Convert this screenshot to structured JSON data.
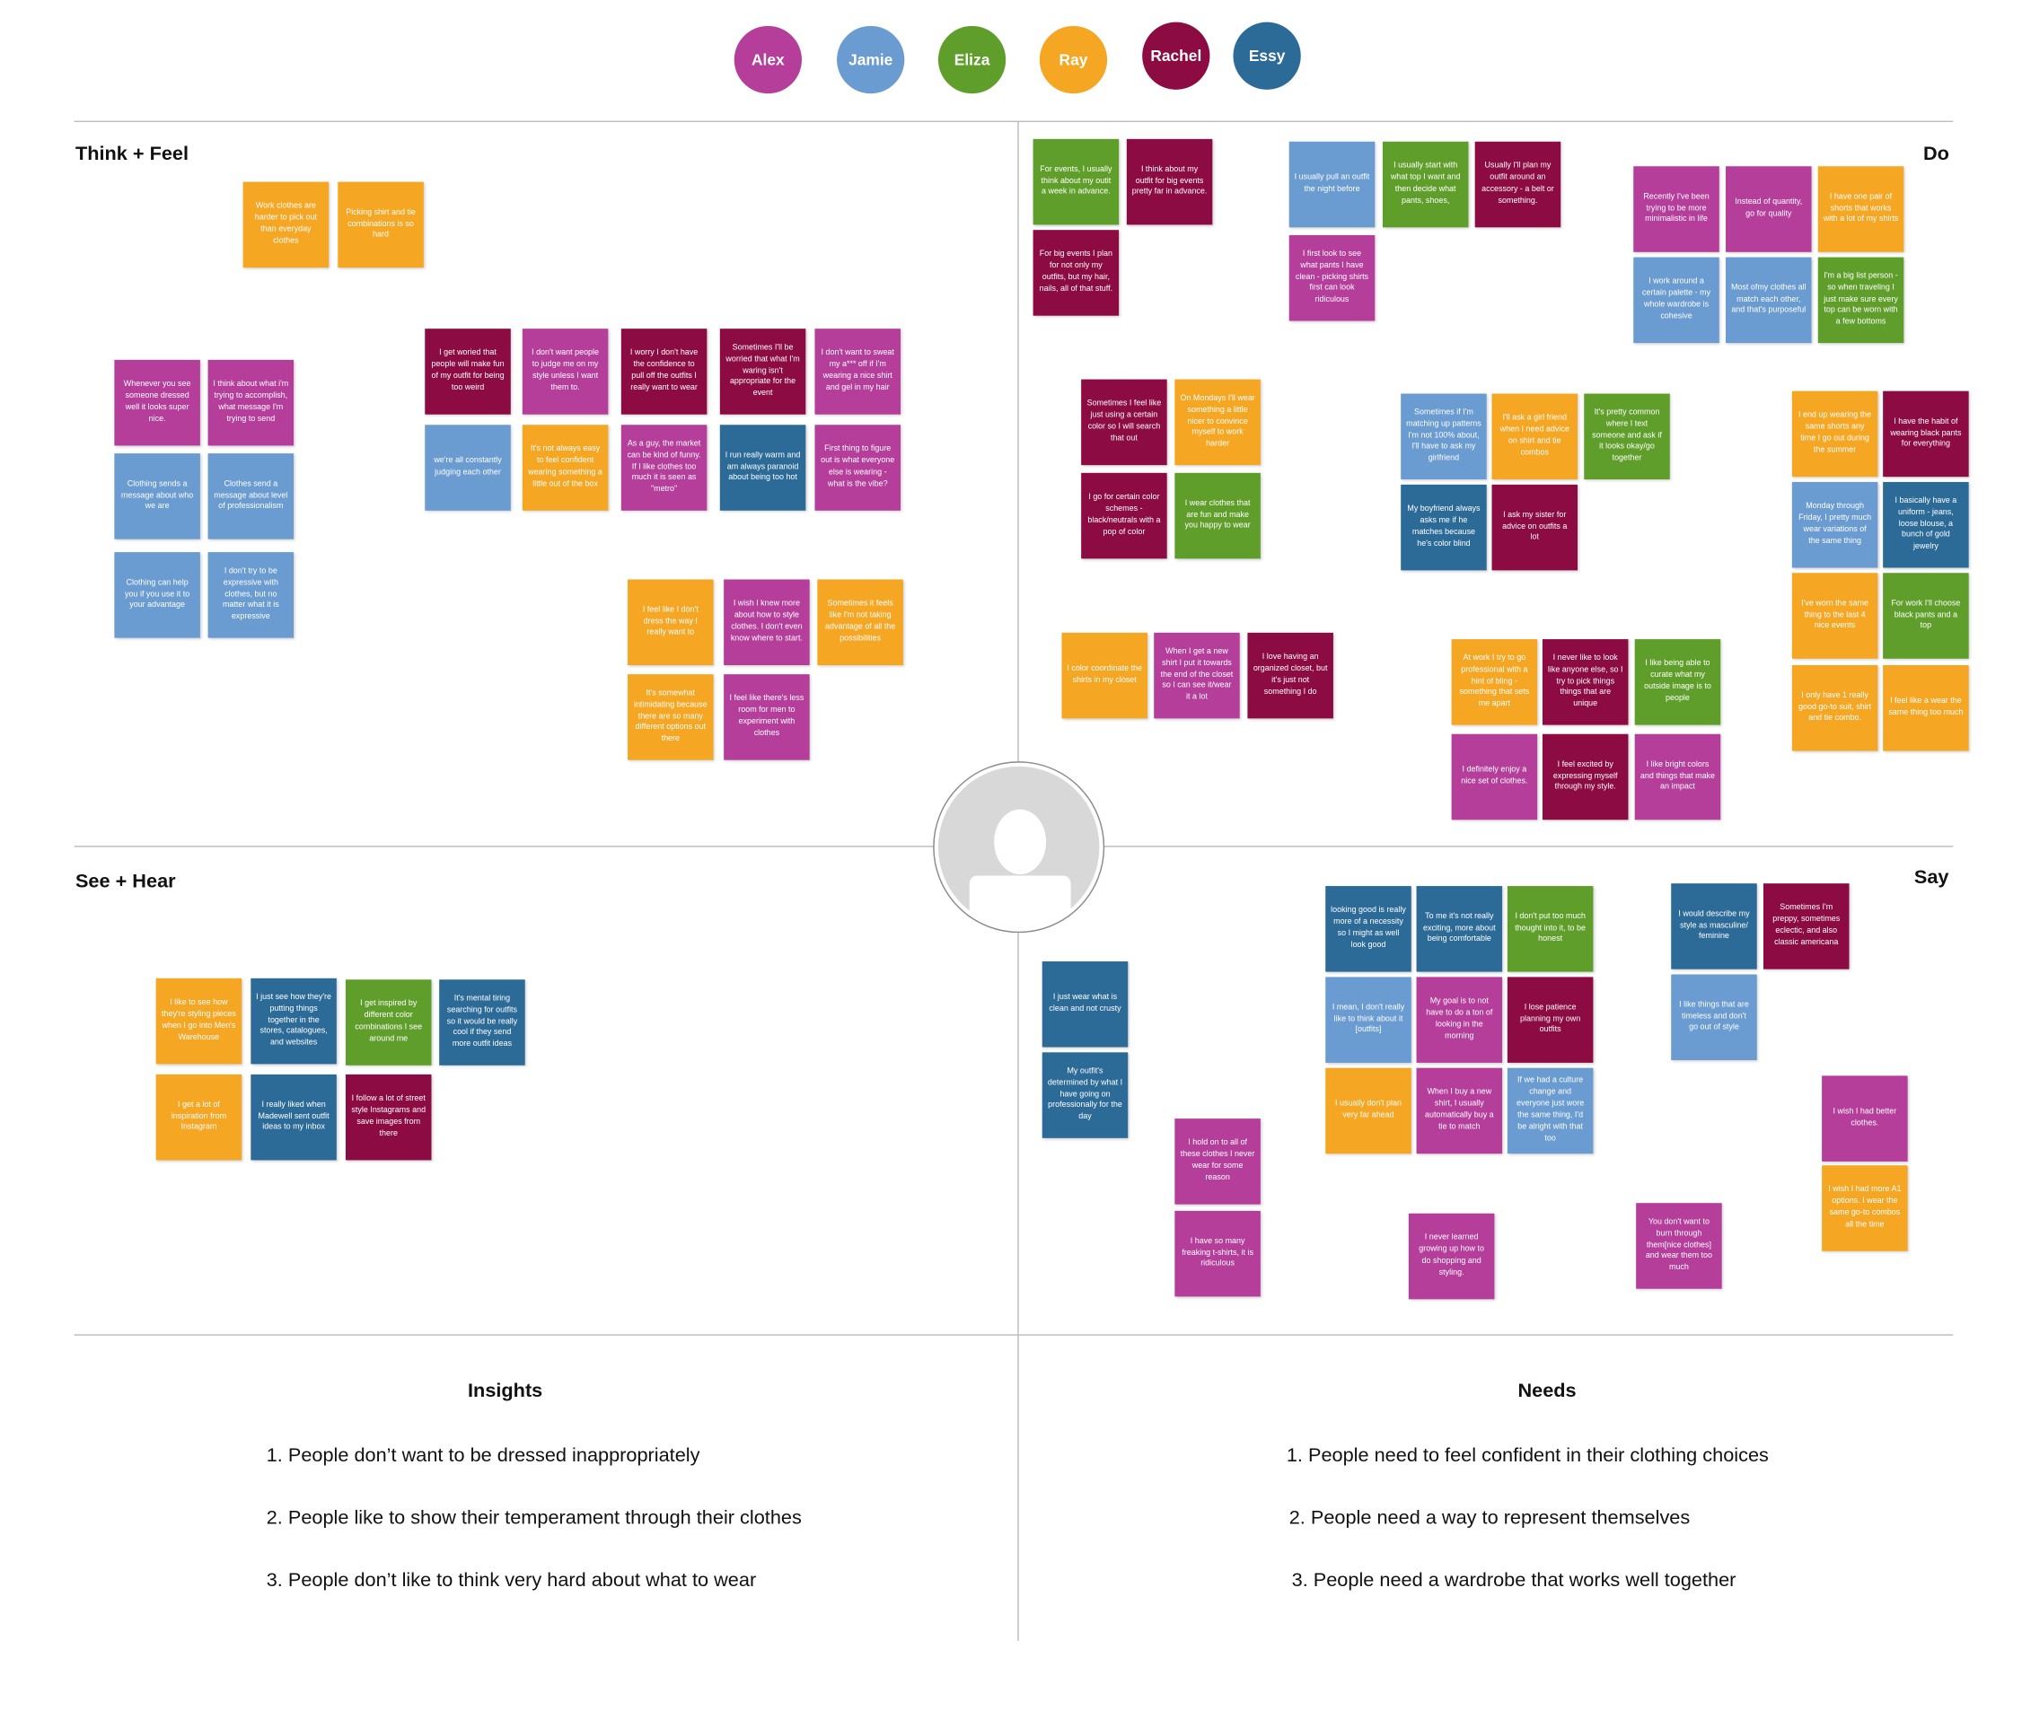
{
  "team": [
    {
      "name": "Alex",
      "color": "#b53e9b"
    },
    {
      "name": "Jamie",
      "color": "#6a9bd1"
    },
    {
      "name": "Eliza",
      "color": "#5f9e2a"
    },
    {
      "name": "Ray",
      "color": "#f5a623"
    },
    {
      "name": "Rachel",
      "color": "#8b0b42"
    },
    {
      "name": "Essy",
      "color": "#2c6a98"
    }
  ],
  "quadrants": {
    "think_feel": "Think + Feel",
    "do": "Do",
    "see_hear": "See + Hear",
    "say": "Say"
  },
  "persona_icon": "user-silhouette-icon",
  "notes": {
    "think_feel": [
      {
        "author": "Ray",
        "text": "Work clothes are harder to pick out than everyday clothes"
      },
      {
        "author": "Ray",
        "text": "Picking shirt and tie combinations is so hard"
      },
      {
        "author": "Alex",
        "text": "Whenever you see someone dressed well it looks super nice."
      },
      {
        "author": "Alex",
        "text": "I think about what i'm trying to accomplish, what message I'm trying to send"
      },
      {
        "author": "Jamie",
        "text": "Clothing sends a message about who we are"
      },
      {
        "author": "Jamie",
        "text": "Clothes send a message about level of professionalism"
      },
      {
        "author": "Jamie",
        "text": "Clothing can help you if you use it to your advantage"
      },
      {
        "author": "Jamie",
        "text": "I don't try to be expressive with clothes, but no matter what it is expressive"
      },
      {
        "author": "Rachel",
        "text": "I get woried that people will make fun of my outfit for being too weird"
      },
      {
        "author": "Alex",
        "text": "I don't want people to judge me on my style unless I want them to."
      },
      {
        "author": "Rachel",
        "text": "I worry I don't have the confidence to pull off the outfits I really want to wear"
      },
      {
        "author": "Rachel",
        "text": "Sometimes I'll be worried that what I'm waring isn't appropriate for the event"
      },
      {
        "author": "Alex",
        "text": "I don't want to sweat my a*** off if I'm wearing a nice shirt and gel in my hair"
      },
      {
        "author": "Jamie",
        "text": "we're all constantly judging each other"
      },
      {
        "author": "Ray",
        "text": "It's not always easy to feel confident wearing something a little out of the box"
      },
      {
        "author": "Alex",
        "text": "As a guy, the market can be kind of funny. If I like clothes too much it is seen as \"metro\""
      },
      {
        "author": "Essy",
        "text": "I run really warm and am always paranoid about being too hot"
      },
      {
        "author": "Alex",
        "text": "First thing to figure out is what everyone else is wearing - what is the vibe?"
      },
      {
        "author": "Ray",
        "text": "I feel like I don't dress the way I really want to"
      },
      {
        "author": "Alex",
        "text": "I wish I knew more about how to style clothes. I don't even know where to start."
      },
      {
        "author": "Ray",
        "text": "Sometimes it feels like I'm not taking advantage of all the possibilities"
      },
      {
        "author": "Ray",
        "text": "It's somewhat intimidating because there are so many different options out there"
      },
      {
        "author": "Alex",
        "text": "I feel like there's less room for men to experiment with clothes"
      }
    ],
    "do": [
      {
        "author": "Eliza",
        "text": "For events, I usually think about my outit a week in advance."
      },
      {
        "author": "Rachel",
        "text": "I think about my outfit for big events pretty far in advance."
      },
      {
        "author": "Rachel",
        "text": "For big events I plan for not only my outfits, but my hair, nails, all of that stuff."
      },
      {
        "author": "Jamie",
        "text": "I usually pull an outfit the night before"
      },
      {
        "author": "Eliza",
        "text": "I usually start with what top I want and then decide what pants, shoes,"
      },
      {
        "author": "Rachel",
        "text": "Usually I'll plan my outfit around an accessory - a belt or something."
      },
      {
        "author": "Alex",
        "text": "I first look to see what pants I have clean - picking shirts first can look ridiculous"
      },
      {
        "author": "Alex",
        "text": "Recently I've been trying to be more minimalistic in life"
      },
      {
        "author": "Alex",
        "text": "Instead of quantity, go for quality"
      },
      {
        "author": "Ray",
        "text": "I have one pair of shorts that works with a lot of my shirts"
      },
      {
        "author": "Jamie",
        "text": "I work around a certain palette - my whole wardrobe is cohesive"
      },
      {
        "author": "Jamie",
        "text": "Most ofmy clothes all match each other, and that's purposeful"
      },
      {
        "author": "Eliza",
        "text": "I'm a big list person - so when traveling I just make sure every top can be worn with a few bottoms"
      },
      {
        "author": "Rachel",
        "text": "Sometimes I feel like just using a certain color so I will search that out"
      },
      {
        "author": "Ray",
        "text": "On Mondays I'll wear something a little nicer to convince myself to work harder"
      },
      {
        "author": "Rachel",
        "text": "I go for certain color schemes - black/neutrals with a pop of color"
      },
      {
        "author": "Eliza",
        "text": "I wear clothes that are fun and make you happy to wear"
      },
      {
        "author": "Jamie",
        "text": "Sometimes if I'm matching up patterns I'm not 100% about, I'll have to ask my girlfriend"
      },
      {
        "author": "Ray",
        "text": "I'll ask a girl friend when I need advice on shirt and tie combos"
      },
      {
        "author": "Eliza",
        "text": "It's pretty common where I text someone and ask if it looks okay/go together"
      },
      {
        "author": "Essy",
        "text": "My boyfriend always asks me if he matches because he's color blind"
      },
      {
        "author": "Rachel",
        "text": "I ask my sister for advice on outfits a lot"
      },
      {
        "author": "Ray",
        "text": "I end up wearing the same shorts any time I go out during the summer"
      },
      {
        "author": "Rachel",
        "text": "I have the habit of wearing black pants for everything"
      },
      {
        "author": "Jamie",
        "text": "Monday through Friday, I pretty much wear variations of the same thing"
      },
      {
        "author": "Essy",
        "text": "I basically have a uniform - jeans, loose blouse, a bunch of gold jewelry"
      },
      {
        "author": "Ray",
        "text": "I've worn the same thing to the last 4 nice events"
      },
      {
        "author": "Eliza",
        "text": "For work I'll choose black pants and a top"
      },
      {
        "author": "Ray",
        "text": "I only have 1 really good go-to suit, shirt and tie combo."
      },
      {
        "author": "Ray",
        "text": "I feel like a wear the same thing too much"
      },
      {
        "author": "Ray",
        "text": "I color coordinate the shirts in my closet"
      },
      {
        "author": "Alex",
        "text": "When I get a new shirt I put it towards the end of the closet so I can see it/wear it a lot"
      },
      {
        "author": "Rachel",
        "text": "I love having an organized closet, but it's just not something I do"
      },
      {
        "author": "Ray",
        "text": "At work I try to go professional with a hint of bling - something that sets me apart"
      },
      {
        "author": "Rachel",
        "text": "I never like to look like anyone else, so I try to pick things things that are unique"
      },
      {
        "author": "Eliza",
        "text": "I like being able to curate what my outside image is to people"
      },
      {
        "author": "Alex",
        "text": "I definitely enjoy a nice set of clothes."
      },
      {
        "author": "Rachel",
        "text": "I feel excited by expressing myself through my style."
      },
      {
        "author": "Alex",
        "text": "I like bright colors and things that make an impact"
      }
    ],
    "see_hear": [
      {
        "author": "Ray",
        "text": "I like to see how they're styling pieces when I go into Men's Warehouse"
      },
      {
        "author": "Essy",
        "text": "I just see how they're putting things together in the stores, catalogues, and websites"
      },
      {
        "author": "Eliza",
        "text": "I get inspired by different color combinations I see around me"
      },
      {
        "author": "Essy",
        "text": "It's mental tiring searching for outfits so it would be really cool if they send more outfit ideas"
      },
      {
        "author": "Ray",
        "text": "I get a lot of inspiration from Instagram"
      },
      {
        "author": "Essy",
        "text": "I really liked when Madewell sent outfit ideas to my inbox"
      },
      {
        "author": "Rachel",
        "text": "I follow a lot of street style Instagrams and save images from there"
      }
    ],
    "say": [
      {
        "author": "Essy",
        "text": "I just wear what is clean and not crusty"
      },
      {
        "author": "Essy",
        "text": "My outfit's determined by what I have going on professionally for the day"
      },
      {
        "author": "Alex",
        "text": "I hold on to all of these clothes I never wear for some reason"
      },
      {
        "author": "Alex",
        "text": "I have so many freaking t-shirts, it is ridiculous"
      },
      {
        "author": "Essy",
        "text": "looking good is really more of a necessity so I might as well look good"
      },
      {
        "author": "Essy",
        "text": "To me it's not really exciting, more about being comfortable"
      },
      {
        "author": "Eliza",
        "text": "I don't put too much thought into it, to be honest"
      },
      {
        "author": "Jamie",
        "text": "I mean, I don't really like to think about it [outfits]"
      },
      {
        "author": "Alex",
        "text": "My goal is to not have to do a ton of looking in the morning"
      },
      {
        "author": "Rachel",
        "text": "I lose patience planning my own outfits"
      },
      {
        "author": "Ray",
        "text": "I usually don't plan very far ahead"
      },
      {
        "author": "Alex",
        "text": "When I buy a new shirt, I usually automatically buy a tie to match"
      },
      {
        "author": "Jamie",
        "text": "If we had a culture change and everyone just wore the same thing, I'd be alright with that too"
      },
      {
        "author": "Alex",
        "text": "I never learned growing up how to do shopping and styling."
      },
      {
        "author": "Essy",
        "text": "I would describe my style as masculine/ feminine"
      },
      {
        "author": "Rachel",
        "text": "Sometimes I'm preppy, sometimes eclectic, and also classic americana"
      },
      {
        "author": "Jamie",
        "text": "I like things that are timeless and don't go out of style"
      },
      {
        "author": "Alex",
        "text": "You don't want to burn through them[nice clothes] and wear them too much"
      },
      {
        "author": "Alex",
        "text": "I wish I had better clothes."
      },
      {
        "author": "Ray",
        "text": "I wish I had more A1 options. I wear the same go-to combos all the time"
      }
    ]
  },
  "insights": {
    "title": "Insights",
    "items": [
      "1. People don’t want to be dressed inappropriately",
      "2. People like to show their temperament through their clothes",
      "3. People don’t like to think very hard about what to wear"
    ]
  },
  "needs": {
    "title": "Needs",
    "items": [
      "1. People need to feel confident in their clothing choices",
      "2. People need a way to represent themselves",
      "3. People need a wardrobe that works well together"
    ]
  }
}
